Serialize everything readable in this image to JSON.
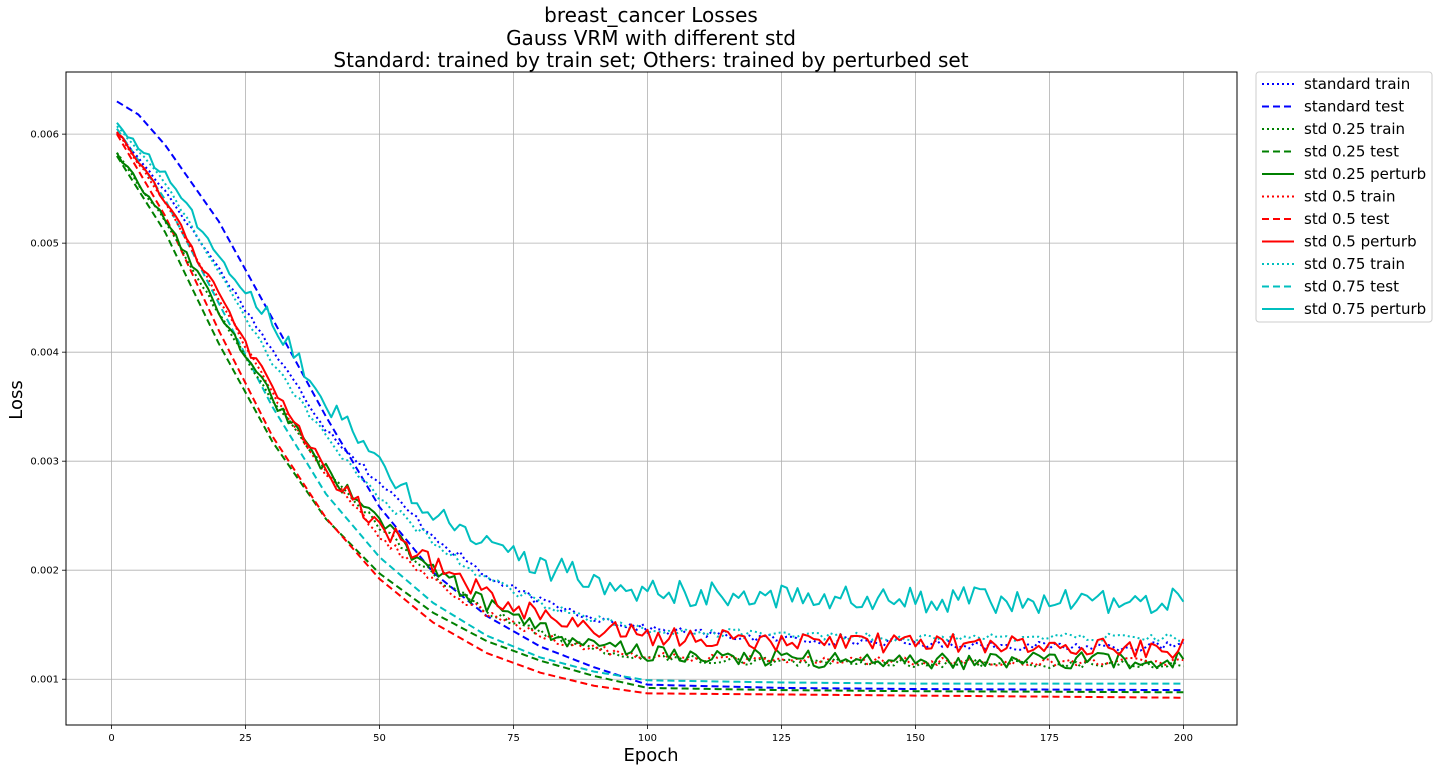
{
  "chart_data": {
    "type": "line",
    "title_lines": [
      "breast_cancer Losses",
      "Gauss VRM with different std",
      "Standard: trained by train set; Others: trained by perturbed set"
    ],
    "xlabel": "Epoch",
    "ylabel": "Loss",
    "xlim": [
      -8.5,
      210
    ],
    "ylim": [
      0.00058,
      0.00657
    ],
    "xticks": [
      0,
      25,
      50,
      75,
      100,
      125,
      150,
      175,
      200
    ],
    "yticks": [
      0.001,
      0.002,
      0.003,
      0.004,
      0.005,
      0.006
    ],
    "ytick_labels": [
      "0.001",
      "0.002",
      "0.003",
      "0.004",
      "0.005",
      "0.006"
    ],
    "grid": true,
    "legend_position": "outside-top-right",
    "series": [
      {
        "name": "standard train",
        "color": "#0000ff",
        "style": "dotted",
        "points": [
          [
            1,
            0.00602
          ],
          [
            10,
            0.00548
          ],
          [
            20,
            0.00477
          ],
          [
            30,
            0.00402
          ],
          [
            40,
            0.0033
          ],
          [
            50,
            0.0028
          ],
          [
            60,
            0.00232
          ],
          [
            70,
            0.00194
          ],
          [
            80,
            0.00171
          ],
          [
            90,
            0.00157
          ],
          [
            100,
            0.00146
          ],
          [
            120,
            0.00138
          ],
          [
            150,
            0.00133
          ],
          [
            175,
            0.0013
          ],
          [
            200,
            0.0013
          ]
        ],
        "noise": 4e-05
      },
      {
        "name": "standard test",
        "color": "#0000ff",
        "style": "dashed",
        "points": [
          [
            1,
            0.0063
          ],
          [
            5,
            0.00618
          ],
          [
            10,
            0.0059
          ],
          [
            20,
            0.0052
          ],
          [
            30,
            0.00431
          ],
          [
            40,
            0.00341
          ],
          [
            50,
            0.00258
          ],
          [
            60,
            0.00198
          ],
          [
            70,
            0.00158
          ],
          [
            80,
            0.0013
          ],
          [
            90,
            0.00111
          ],
          [
            100,
            0.00095
          ],
          [
            125,
            0.00092
          ],
          [
            150,
            0.00091
          ],
          [
            200,
            0.0009
          ]
        ],
        "noise": 0
      },
      {
        "name": "std 0.25 train",
        "color": "#008000",
        "style": "dotted",
        "points": [
          [
            1,
            0.00582
          ],
          [
            10,
            0.0052
          ],
          [
            20,
            0.00436
          ],
          [
            30,
            0.00355
          ],
          [
            40,
            0.00291
          ],
          [
            50,
            0.0024
          ],
          [
            60,
            0.00196
          ],
          [
            70,
            0.00163
          ],
          [
            80,
            0.00142
          ],
          [
            90,
            0.00128
          ],
          [
            100,
            0.0012
          ],
          [
            125,
            0.00116
          ],
          [
            150,
            0.00115
          ],
          [
            175,
            0.00114
          ],
          [
            200,
            0.00114
          ]
        ],
        "noise": 4e-05
      },
      {
        "name": "std 0.25 test",
        "color": "#008000",
        "style": "dashed",
        "points": [
          [
            1,
            0.0058
          ],
          [
            10,
            0.0051
          ],
          [
            20,
            0.00408
          ],
          [
            30,
            0.00318
          ],
          [
            40,
            0.00247
          ],
          [
            50,
            0.00197
          ],
          [
            60,
            0.00161
          ],
          [
            70,
            0.00135
          ],
          [
            80,
            0.00117
          ],
          [
            90,
            0.00103
          ],
          [
            100,
            0.00092
          ],
          [
            125,
            0.0009
          ],
          [
            150,
            0.00089
          ],
          [
            200,
            0.00088
          ]
        ],
        "noise": 0
      },
      {
        "name": "std 0.25 perturb",
        "color": "#008000",
        "style": "solid",
        "points": [
          [
            1,
            0.00582
          ],
          [
            10,
            0.00522
          ],
          [
            20,
            0.00438
          ],
          [
            30,
            0.00358
          ],
          [
            40,
            0.00292
          ],
          [
            50,
            0.00243
          ],
          [
            60,
            0.002
          ],
          [
            70,
            0.00168
          ],
          [
            80,
            0.00145
          ],
          [
            90,
            0.00131
          ],
          [
            100,
            0.00124
          ],
          [
            125,
            0.00119
          ],
          [
            150,
            0.00117
          ],
          [
            175,
            0.00117
          ],
          [
            200,
            0.00118
          ]
        ],
        "noise": 8e-05
      },
      {
        "name": "std 0.5 train",
        "color": "#ff0000",
        "style": "dotted",
        "points": [
          [
            1,
            0.00602
          ],
          [
            10,
            0.00538
          ],
          [
            20,
            0.0045
          ],
          [
            30,
            0.00362
          ],
          [
            40,
            0.00289
          ],
          [
            50,
            0.00232
          ],
          [
            60,
            0.0019
          ],
          [
            70,
            0.0016
          ],
          [
            80,
            0.0014
          ],
          [
            90,
            0.00128
          ],
          [
            100,
            0.00121
          ],
          [
            125,
            0.00117
          ],
          [
            150,
            0.00117
          ],
          [
            175,
            0.00116
          ],
          [
            200,
            0.00116
          ]
        ],
        "noise": 4e-05
      },
      {
        "name": "std 0.5 test",
        "color": "#ff0000",
        "style": "dashed",
        "points": [
          [
            1,
            0.006
          ],
          [
            10,
            0.00525
          ],
          [
            20,
            0.0042
          ],
          [
            30,
            0.00323
          ],
          [
            40,
            0.00248
          ],
          [
            50,
            0.00192
          ],
          [
            60,
            0.00152
          ],
          [
            70,
            0.00124
          ],
          [
            80,
            0.00106
          ],
          [
            90,
            0.00094
          ],
          [
            100,
            0.00087
          ],
          [
            125,
            0.00086
          ],
          [
            150,
            0.00085
          ],
          [
            200,
            0.00083
          ]
        ],
        "noise": 0
      },
      {
        "name": "std 0.5 perturb",
        "color": "#ff0000",
        "style": "solid",
        "points": [
          [
            1,
            0.00602
          ],
          [
            10,
            0.0054
          ],
          [
            20,
            0.00452
          ],
          [
            30,
            0.00365
          ],
          [
            40,
            0.00291
          ],
          [
            50,
            0.0024
          ],
          [
            60,
            0.00205
          ],
          [
            70,
            0.00178
          ],
          [
            80,
            0.00158
          ],
          [
            90,
            0.00147
          ],
          [
            100,
            0.0014
          ],
          [
            125,
            0.00134
          ],
          [
            150,
            0.00133
          ],
          [
            175,
            0.00132
          ],
          [
            200,
            0.00128
          ]
        ],
        "noise": 9e-05
      },
      {
        "name": "std 0.75 train",
        "color": "#00bfbf",
        "style": "dotted",
        "points": [
          [
            1,
            0.00608
          ],
          [
            10,
            0.00556
          ],
          [
            20,
            0.00473
          ],
          [
            30,
            0.0039
          ],
          [
            40,
            0.00322
          ],
          [
            50,
            0.00268
          ],
          [
            60,
            0.00226
          ],
          [
            70,
            0.00192
          ],
          [
            80,
            0.00169
          ],
          [
            90,
            0.00155
          ],
          [
            100,
            0.00146
          ],
          [
            125,
            0.0014
          ],
          [
            150,
            0.00138
          ],
          [
            175,
            0.00138
          ],
          [
            200,
            0.00138
          ]
        ],
        "noise": 4e-05
      },
      {
        "name": "std 0.75 test",
        "color": "#00bfbf",
        "style": "dashed",
        "points": [
          [
            1,
            0.00605
          ],
          [
            10,
            0.0054
          ],
          [
            20,
            0.00445
          ],
          [
            30,
            0.0035
          ],
          [
            40,
            0.0027
          ],
          [
            50,
            0.00212
          ],
          [
            60,
            0.0017
          ],
          [
            70,
            0.0014
          ],
          [
            80,
            0.0012
          ],
          [
            90,
            0.00107
          ],
          [
            100,
            0.00099
          ],
          [
            125,
            0.00097
          ],
          [
            150,
            0.00096
          ],
          [
            200,
            0.00096
          ]
        ],
        "noise": 0
      },
      {
        "name": "std 0.75 perturb",
        "color": "#00bfbf",
        "style": "solid",
        "points": [
          [
            1,
            0.00608
          ],
          [
            10,
            0.00562
          ],
          [
            20,
            0.0049
          ],
          [
            30,
            0.0043
          ],
          [
            40,
            0.00355
          ],
          [
            50,
            0.003
          ],
          [
            60,
            0.0025
          ],
          [
            70,
            0.0023
          ],
          [
            80,
            0.00205
          ],
          [
            90,
            0.0019
          ],
          [
            100,
            0.0018
          ],
          [
            125,
            0.00175
          ],
          [
            150,
            0.00173
          ],
          [
            175,
            0.00172
          ],
          [
            200,
            0.00172
          ]
        ],
        "noise": 0.00012
      }
    ]
  }
}
